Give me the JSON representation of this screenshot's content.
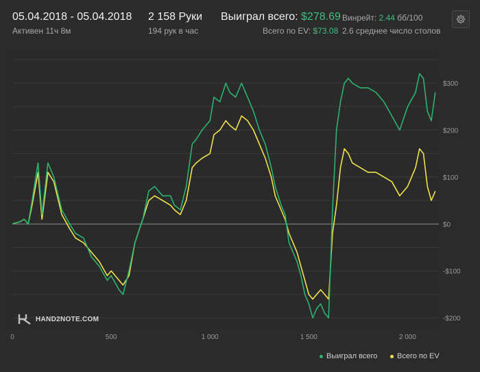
{
  "header": {
    "date_range": "05.04.2018 - 05.04.2018",
    "active_time": "Активен 11ч 8м",
    "hands": "2 158 Руки",
    "hands_per_hour": "194 рук в час",
    "won_total_label": "Выиграл всего:",
    "won_total_value": "$278.69",
    "ev_label": "Всего по EV:",
    "ev_value": "$73.08",
    "winrate_label": "Винрейт:",
    "winrate_value": "2.44",
    "winrate_unit": "бб/100",
    "avg_tables": "2.6 среднее число столов",
    "settings_icon": "gear-icon"
  },
  "brand": {
    "text": "HAND2NOTE.COM",
    "icon": "h2n-logo-icon"
  },
  "colors": {
    "won": "#2db36f",
    "ev": "#f2e24a",
    "grid": "#3a3a3a",
    "zero_line": "#8a8a8a"
  },
  "chart_data": {
    "type": "line",
    "xlim": [
      0,
      2158
    ],
    "ylim": [
      -210,
      360
    ],
    "x_ticks": [
      0,
      500,
      1000,
      1500,
      2000
    ],
    "x_tick_labels": [
      "0",
      "500",
      "1 000",
      "1 500",
      "2 000"
    ],
    "y_ticks": [
      300,
      200,
      100,
      0,
      -100,
      -200
    ],
    "y_tick_labels": [
      "$300",
      "$200",
      "$100",
      "$0",
      "-$100",
      "-$200"
    ],
    "legend_position": "bottom-right",
    "series": [
      {
        "name": "Выиграл всего",
        "color": "#2db36f",
        "x": [
          0,
          40,
          60,
          80,
          100,
          130,
          150,
          180,
          210,
          250,
          290,
          320,
          360,
          400,
          440,
          480,
          500,
          540,
          560,
          590,
          620,
          660,
          690,
          720,
          760,
          800,
          820,
          850,
          880,
          910,
          930,
          960,
          1000,
          1020,
          1050,
          1080,
          1100,
          1130,
          1160,
          1190,
          1220,
          1250,
          1280,
          1310,
          1330,
          1360,
          1380,
          1400,
          1420,
          1440,
          1460,
          1480,
          1500,
          1520,
          1540,
          1560,
          1580,
          1600,
          1620,
          1640,
          1660,
          1680,
          1700,
          1720,
          1760,
          1800,
          1840,
          1880,
          1920,
          1960,
          2000,
          2040,
          2060,
          2080,
          2100,
          2120,
          2140
        ],
        "y": [
          0,
          5,
          10,
          0,
          50,
          130,
          20,
          130,
          100,
          30,
          0,
          -20,
          -30,
          -70,
          -90,
          -120,
          -110,
          -140,
          -150,
          -100,
          -40,
          10,
          70,
          80,
          60,
          60,
          40,
          30,
          80,
          170,
          180,
          200,
          220,
          270,
          260,
          300,
          280,
          270,
          300,
          270,
          240,
          200,
          170,
          120,
          80,
          40,
          20,
          -40,
          -60,
          -80,
          -110,
          -150,
          -170,
          -200,
          -180,
          -170,
          -190,
          -200,
          30,
          200,
          260,
          300,
          310,
          300,
          290,
          290,
          280,
          260,
          230,
          200,
          250,
          280,
          320,
          310,
          240,
          220,
          280
        ]
      },
      {
        "name": "Всего по EV",
        "color": "#f2e24a",
        "x": [
          0,
          40,
          60,
          80,
          100,
          130,
          150,
          180,
          210,
          250,
          290,
          320,
          360,
          400,
          440,
          480,
          500,
          540,
          560,
          590,
          620,
          660,
          690,
          720,
          760,
          800,
          820,
          850,
          880,
          910,
          930,
          960,
          1000,
          1020,
          1050,
          1080,
          1100,
          1130,
          1160,
          1190,
          1220,
          1250,
          1280,
          1310,
          1330,
          1360,
          1380,
          1400,
          1420,
          1440,
          1460,
          1480,
          1500,
          1520,
          1540,
          1560,
          1580,
          1600,
          1620,
          1640,
          1660,
          1680,
          1700,
          1720,
          1760,
          1800,
          1840,
          1880,
          1920,
          1960,
          2000,
          2040,
          2060,
          2080,
          2100,
          2120,
          2140
        ],
        "y": [
          0,
          5,
          10,
          0,
          40,
          110,
          10,
          110,
          90,
          20,
          -10,
          -30,
          -40,
          -60,
          -80,
          -110,
          -100,
          -120,
          -130,
          -110,
          -40,
          10,
          50,
          60,
          50,
          40,
          30,
          20,
          50,
          120,
          130,
          140,
          150,
          190,
          200,
          220,
          210,
          200,
          230,
          220,
          200,
          170,
          140,
          100,
          60,
          30,
          10,
          -20,
          -40,
          -60,
          -90,
          -120,
          -150,
          -160,
          -150,
          -140,
          -150,
          -160,
          -20,
          40,
          120,
          160,
          150,
          130,
          120,
          110,
          110,
          100,
          90,
          60,
          80,
          120,
          160,
          150,
          80,
          50,
          70
        ]
      }
    ]
  }
}
